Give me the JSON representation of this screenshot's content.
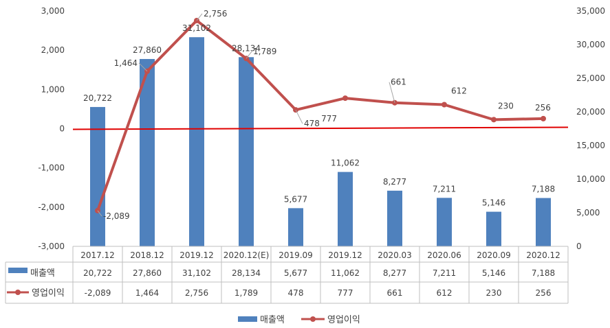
{
  "chart_data": {
    "type": "bar+line",
    "categories": [
      "2017.12",
      "2018.12",
      "2019.12",
      "2020.12(E)",
      "2019.09",
      "2019.12",
      "2020.03",
      "2020.06",
      "2020.09",
      "2020.12"
    ],
    "series": [
      {
        "name": "매출액",
        "type": "bar",
        "axis": "right",
        "color": "#4f81bd",
        "values": [
          20722,
          27860,
          31102,
          28134,
          5677,
          11062,
          8277,
          7211,
          5146,
          7188
        ],
        "labels": [
          "20,722",
          "27,860",
          "31,102",
          "28,134",
          "5,677",
          "11,062",
          "8,277",
          "7,211",
          "5,146",
          "7,188"
        ]
      },
      {
        "name": "영업이익",
        "type": "line",
        "axis": "left",
        "color": "#c0504d",
        "values": [
          -2089,
          1464,
          2756,
          1789,
          478,
          777,
          661,
          612,
          230,
          256
        ],
        "labels": [
          "-2,089",
          "1,464",
          "2,756",
          "1,789",
          "478",
          "777",
          "661",
          "612",
          "230",
          "256"
        ]
      }
    ],
    "left_axis": {
      "min": -3000,
      "max": 3000,
      "step": 1000,
      "ticks": [
        "-3,000",
        "-2,000",
        "-1,000",
        "0",
        "1,000",
        "2,000",
        "3,000"
      ]
    },
    "right_axis": {
      "min": 0,
      "max": 35000,
      "step": 5000,
      "ticks": [
        "0",
        "5,000",
        "10,000",
        "15,000",
        "20,000",
        "25,000",
        "30,000",
        "35,000"
      ]
    },
    "zero_line_color": "#e00000",
    "legend_position": "bottom",
    "data_table": true
  }
}
